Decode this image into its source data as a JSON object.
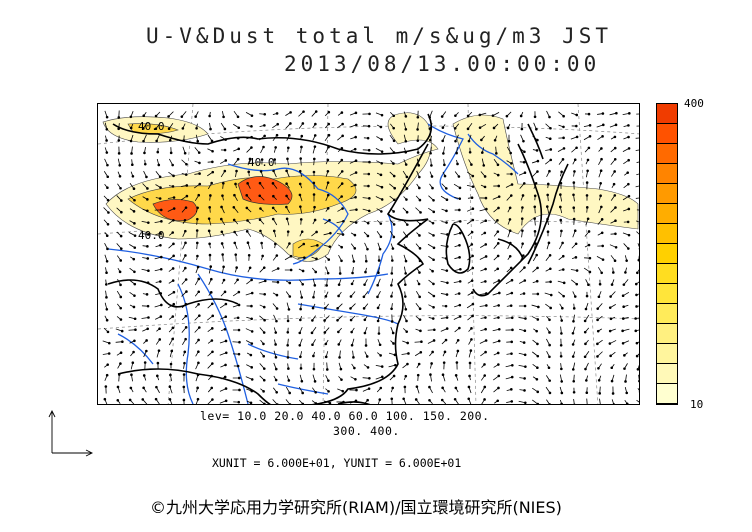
{
  "title": {
    "line1": "U-V&Dust total m/s&ug/m3 JST",
    "line2": "2013/08/13.00:00:00"
  },
  "contour_labels": [
    "40.0",
    "40.0",
    "40.0"
  ],
  "colorbar": {
    "max_label": "400",
    "min_label": "10",
    "colors": [
      "#ffffd0",
      "#fff9b8",
      "#fff59d",
      "#fff080",
      "#ffeb5a",
      "#ffe53a",
      "#ffdd20",
      "#ffd000",
      "#ffc000",
      "#ffad00",
      "#ff9a00",
      "#ff8400",
      "#ff6a00",
      "#ff5200",
      "#f03c00"
    ]
  },
  "levels": {
    "line1": "lev= 10.0 20.0 40.0 60.0 100. 150. 200.",
    "line2": "300. 400."
  },
  "units": "XUNIT = 6.000E+01, YUNIT = 6.000E+01",
  "credit": "©九州大学応用力学研究所(RIAM)/国立環境研究所(NIES)",
  "colors": {
    "coast": "#000000",
    "river": "#1f5fe0",
    "dust_light": "#fff7c2",
    "dust_mid": "#ffd84a",
    "dust_high": "#ff5a14"
  }
}
